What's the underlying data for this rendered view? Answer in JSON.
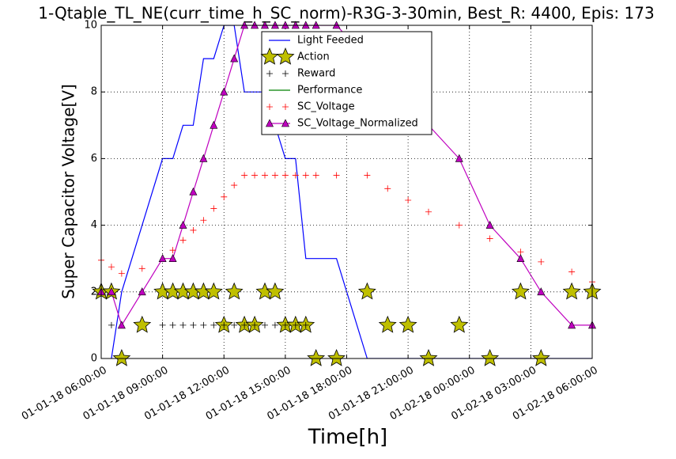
{
  "chart_data": {
    "type": "line",
    "title": "1-Qtable_TL_NE(curr_time_h_SC_norm)-R3G-3-30min, Best_R: 4400, Epis: 173",
    "xlabel": "Time[h]",
    "ylabel": "Super Capacitor Voltage[V]",
    "xlim": [
      "01-01-18 06:00:00",
      "01-02-18 06:00:00"
    ],
    "xticks": [
      "01-01-18 06:00:00",
      "01-01-18 09:00:00",
      "01-01-18 12:00:00",
      "01-01-18 15:00:00",
      "01-01-18 18:00:00",
      "01-01-18 21:00:00",
      "01-02-18 00:00:00",
      "01-02-18 03:00:00",
      "01-02-18 06:00:00"
    ],
    "ylim": [
      0,
      10
    ],
    "yticks": [
      0,
      2,
      4,
      6,
      8,
      10
    ],
    "grid": true,
    "legend": "upper center",
    "series": [
      {
        "name": "Light Feeded",
        "color": "#0000ff",
        "line": true,
        "marker": "none",
        "x": [
          "01-01-18 06:30:00",
          "01-01-18 07:00:00",
          "01-01-18 09:00:00",
          "01-01-18 09:30:00",
          "01-01-18 10:00:00",
          "01-01-18 10:30:00",
          "01-01-18 11:00:00",
          "01-01-18 11:30:00",
          "01-01-18 12:00:00",
          "01-01-18 12:30:00",
          "01-01-18 13:00:00",
          "01-01-18 13:30:00",
          "01-01-18 14:00:00",
          "01-01-18 14:30:00",
          "01-01-18 15:00:00",
          "01-01-18 15:30:00",
          "01-01-18 16:00:00",
          "01-01-18 17:30:00",
          "01-01-18 19:00:00",
          "01-02-18 06:00:00"
        ],
        "values": [
          0,
          2,
          6,
          6,
          7,
          7,
          9,
          9,
          10,
          10,
          8,
          8,
          8,
          7,
          6,
          6,
          3,
          3,
          0,
          0
        ]
      },
      {
        "name": "Action",
        "color": "#bfbf00",
        "line": false,
        "marker": "star",
        "x": [
          "01-01-18 06:00:00",
          "01-01-18 06:30:00",
          "01-01-18 07:00:00",
          "01-01-18 08:00:00",
          "01-01-18 09:00:00",
          "01-01-18 09:30:00",
          "01-01-18 10:00:00",
          "01-01-18 10:30:00",
          "01-01-18 11:00:00",
          "01-01-18 11:30:00",
          "01-01-18 12:00:00",
          "01-01-18 12:30:00",
          "01-01-18 13:00:00",
          "01-01-18 13:30:00",
          "01-01-18 14:00:00",
          "01-01-18 14:30:00",
          "01-01-18 15:00:00",
          "01-01-18 15:30:00",
          "01-01-18 16:00:00",
          "01-01-18 16:30:00",
          "01-01-18 17:30:00",
          "01-01-18 19:00:00",
          "01-01-18 20:00:00",
          "01-01-18 21:00:00",
          "01-01-18 22:00:00",
          "01-01-18 23:30:00",
          "01-02-18 01:00:00",
          "01-02-18 02:30:00",
          "01-02-18 03:30:00",
          "01-02-18 05:00:00",
          "01-02-18 06:00:00"
        ],
        "values": [
          2,
          2,
          0,
          1,
          2,
          2,
          2,
          2,
          2,
          2,
          1,
          2,
          1,
          1,
          2,
          2,
          1,
          1,
          1,
          0,
          0,
          2,
          1,
          1,
          0,
          1,
          0,
          2,
          0,
          2,
          2
        ]
      },
      {
        "name": "Reward",
        "color": "#000000",
        "line": false,
        "marker": "plus",
        "x": [
          "01-01-18 06:30:00",
          "01-01-18 09:00:00",
          "01-01-18 09:30:00",
          "01-01-18 10:00:00",
          "01-01-18 10:30:00",
          "01-01-18 11:00:00",
          "01-01-18 11:30:00",
          "01-01-18 12:00:00",
          "01-01-18 12:30:00",
          "01-01-18 13:00:00",
          "01-01-18 13:30:00",
          "01-01-18 14:00:00",
          "01-01-18 14:30:00",
          "01-01-18 15:00:00",
          "01-01-18 15:30:00",
          "01-01-18 16:00:00"
        ],
        "values": [
          1,
          1,
          1,
          1,
          1,
          1,
          1,
          1,
          1,
          1,
          1,
          1,
          1,
          1,
          1,
          1
        ]
      },
      {
        "name": "Performance",
        "color": "#008000",
        "line": true,
        "marker": "none",
        "x": [],
        "values": []
      },
      {
        "name": "SC_Voltage",
        "color": "#ff0000",
        "line": false,
        "marker": "plus",
        "x": [
          "01-01-18 06:00:00",
          "01-01-18 06:30:00",
          "01-01-18 07:00:00",
          "01-01-18 08:00:00",
          "01-01-18 09:30:00",
          "01-01-18 10:00:00",
          "01-01-18 10:30:00",
          "01-01-18 11:00:00",
          "01-01-18 11:30:00",
          "01-01-18 12:00:00",
          "01-01-18 12:30:00",
          "01-01-18 13:00:00",
          "01-01-18 13:30:00",
          "01-01-18 14:00:00",
          "01-01-18 14:30:00",
          "01-01-18 15:00:00",
          "01-01-18 15:30:00",
          "01-01-18 16:00:00",
          "01-01-18 16:30:00",
          "01-01-18 17:30:00",
          "01-01-18 19:00:00",
          "01-01-18 20:00:00",
          "01-01-18 21:00:00",
          "01-01-18 22:00:00",
          "01-01-18 23:30:00",
          "01-02-18 01:00:00",
          "01-02-18 02:30:00",
          "01-02-18 03:30:00",
          "01-02-18 05:00:00",
          "01-02-18 06:00:00"
        ],
        "values": [
          2.95,
          2.75,
          2.55,
          2.7,
          3.25,
          3.55,
          3.85,
          4.15,
          4.5,
          4.85,
          5.2,
          5.5,
          5.5,
          5.5,
          5.5,
          5.5,
          5.5,
          5.5,
          5.5,
          5.5,
          5.5,
          5.1,
          4.75,
          4.4,
          4.0,
          3.6,
          3.2,
          2.9,
          2.6,
          2.3
        ]
      },
      {
        "name": "SC_Voltage_Normalized",
        "color": "#bf00bf",
        "line": true,
        "marker": "triangle",
        "x": [
          "01-01-18 06:00:00",
          "01-01-18 06:30:00",
          "01-01-18 07:00:00",
          "01-01-18 08:00:00",
          "01-01-18 09:00:00",
          "01-01-18 09:30:00",
          "01-01-18 10:00:00",
          "01-01-18 10:30:00",
          "01-01-18 11:00:00",
          "01-01-18 11:30:00",
          "01-01-18 12:00:00",
          "01-01-18 12:30:00",
          "01-01-18 13:00:00",
          "01-01-18 13:30:00",
          "01-01-18 14:00:00",
          "01-01-18 14:30:00",
          "01-01-18 15:00:00",
          "01-01-18 15:30:00",
          "01-01-18 16:00:00",
          "01-01-18 16:30:00",
          "01-01-18 17:30:00",
          "01-01-18 23:30:00",
          "01-02-18 01:00:00",
          "01-02-18 02:30:00",
          "01-02-18 03:30:00",
          "01-02-18 05:00:00",
          "01-02-18 06:00:00"
        ],
        "values": [
          2,
          2,
          1,
          2,
          3,
          3,
          4,
          5,
          6,
          7,
          8,
          9,
          10,
          10,
          10,
          10,
          10,
          10,
          10,
          10,
          10,
          6,
          4,
          3,
          2,
          1,
          1
        ]
      }
    ]
  }
}
